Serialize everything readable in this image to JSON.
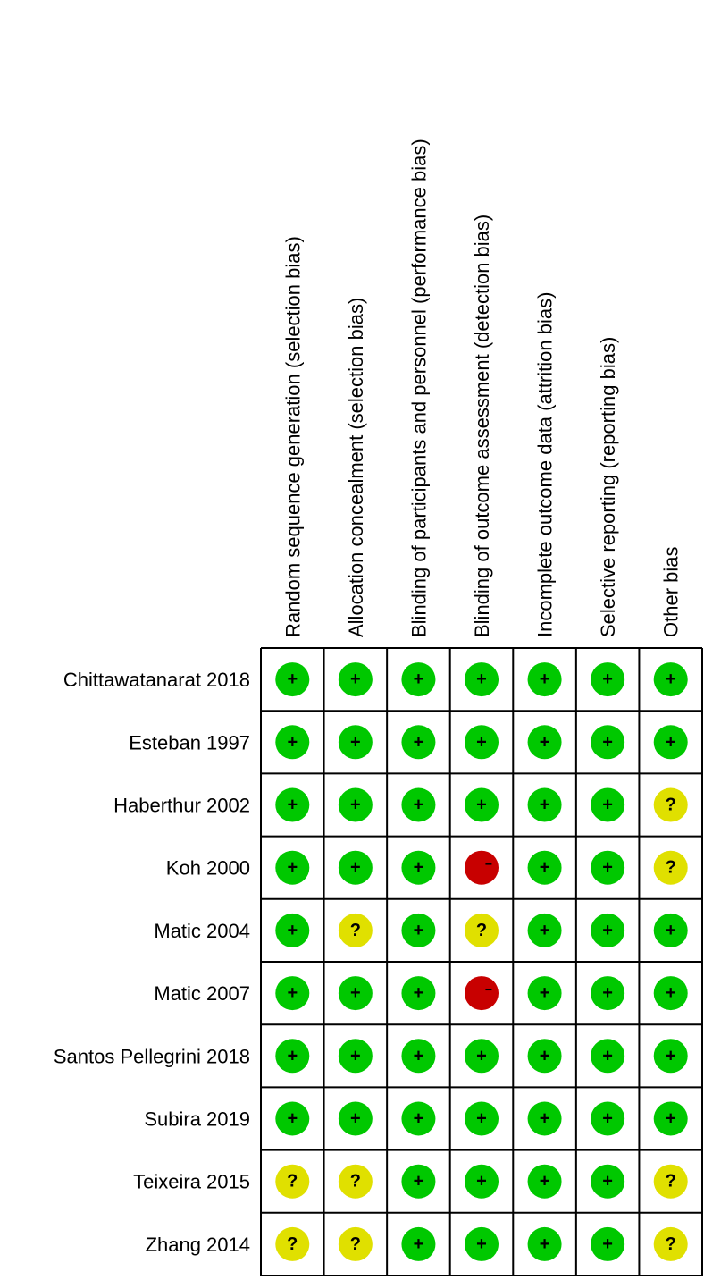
{
  "columns": [
    "Random sequence generation (selection bias)",
    "Allocation concealment (selection bias)",
    "Blinding of participants and personnel (performance bias)",
    "Blinding of outcome assessment (detection bias)",
    "Incomplete outcome data (attrition bias)",
    "Selective reporting (reporting bias)",
    "Other bias"
  ],
  "rows": [
    {
      "study": "Chittawatanarat 2018",
      "cells": [
        "+",
        "+",
        "+",
        "+",
        "+",
        "+",
        "+"
      ]
    },
    {
      "study": "Esteban 1997",
      "cells": [
        "+",
        "+",
        "+",
        "+",
        "+",
        "+",
        "+"
      ]
    },
    {
      "study": "Haberthur 2002",
      "cells": [
        "+",
        "+",
        "+",
        "+",
        "+",
        "+",
        "?"
      ]
    },
    {
      "study": "Koh 2000",
      "cells": [
        "+",
        "+",
        "+",
        "−",
        "+",
        "+",
        "?"
      ]
    },
    {
      "study": "Matic 2004",
      "cells": [
        "+",
        "?",
        "+",
        "?",
        "+",
        "+",
        "+"
      ]
    },
    {
      "study": "Matic 2007",
      "cells": [
        "+",
        "+",
        "+",
        "−",
        "+",
        "+",
        "+"
      ]
    },
    {
      "study": "Santos Pellegrini 2018",
      "cells": [
        "+",
        "+",
        "+",
        "+",
        "+",
        "+",
        "+"
      ]
    },
    {
      "study": "Subira 2019",
      "cells": [
        "+",
        "+",
        "+",
        "+",
        "+",
        "+",
        "+"
      ]
    },
    {
      "study": "Teixeira 2015",
      "cells": [
        "?",
        "?",
        "+",
        "+",
        "+",
        "+",
        "?"
      ]
    },
    {
      "study": "Zhang 2014",
      "cells": [
        "?",
        "?",
        "+",
        "+",
        "+",
        "+",
        "?"
      ]
    }
  ],
  "colors": {
    "+": "#00c800",
    "?": "#e0e000",
    "−": "#c80000"
  }
}
